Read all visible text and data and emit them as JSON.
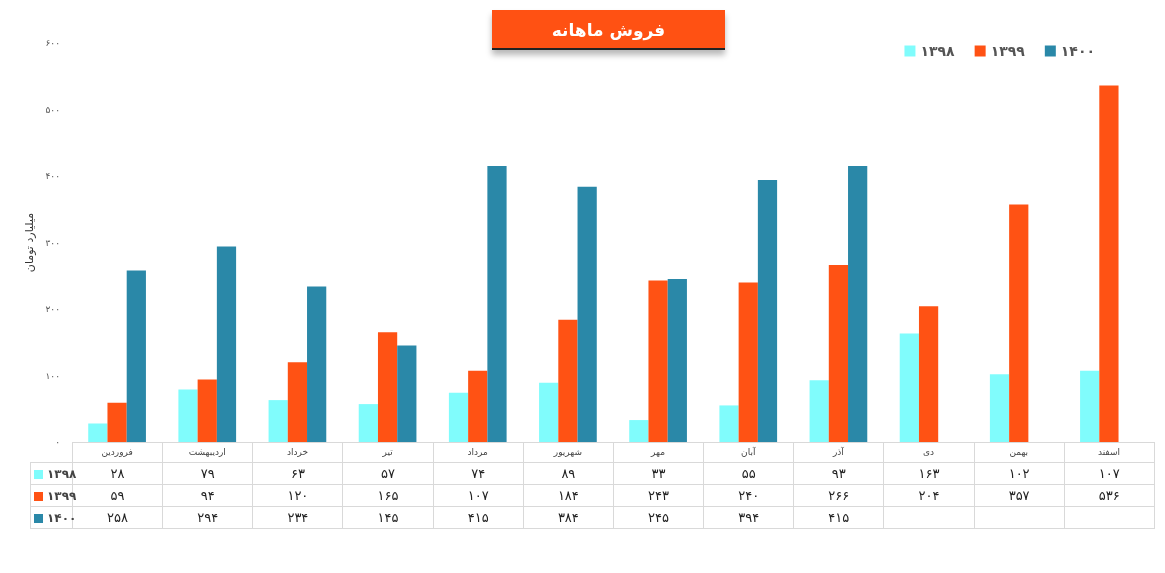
{
  "chart_data": {
    "type": "bar",
    "title": "فروش ماهانه",
    "ylabel": "میلیارد تومان",
    "categories": [
      "فروردین",
      "اردیبهشت",
      "خرداد",
      "تیر",
      "مرداد",
      "شهریور",
      "مهر",
      "آبان",
      "آذر",
      "دی",
      "بهمن",
      "اسفند"
    ],
    "series": [
      {
        "name": "۱۳۹۸",
        "color": "#80fcfc",
        "values": [
          28,
          79,
          63,
          57,
          74,
          89,
          33,
          55,
          93,
          163,
          102,
          107
        ],
        "value_labels": [
          "۲۸",
          "۷۹",
          "۶۳",
          "۵۷",
          "۷۴",
          "۸۹",
          "۳۳",
          "۵۵",
          "۹۳",
          "۱۶۳",
          "۱۰۲",
          "۱۰۷"
        ]
      },
      {
        "name": "۱۳۹۹",
        "color": "#ff5214",
        "values": [
          59,
          94,
          120,
          165,
          107,
          184,
          243,
          240,
          266,
          204,
          357,
          536
        ],
        "value_labels": [
          "۵۹",
          "۹۴",
          "۱۲۰",
          "۱۶۵",
          "۱۰۷",
          "۱۸۴",
          "۲۴۳",
          "۲۴۰",
          "۲۶۶",
          "۲۰۴",
          "۳۵۷",
          "۵۳۶"
        ]
      },
      {
        "name": "۱۴۰۰",
        "color": "#2a88a8",
        "values": [
          258,
          294,
          234,
          145,
          415,
          384,
          245,
          394,
          415,
          null,
          null,
          null
        ],
        "value_labels": [
          "۲۵۸",
          "۲۹۴",
          "۲۳۴",
          "۱۴۵",
          "۴۱۵",
          "۳۸۴",
          "۲۴۵",
          "۳۹۴",
          "۴۱۵",
          null,
          null,
          null
        ]
      }
    ],
    "ylim": [
      0,
      600
    ],
    "yticks": [
      {
        "value": 0,
        "label": "۰"
      },
      {
        "value": 100,
        "label": "۱۰۰"
      },
      {
        "value": 200,
        "label": "۲۰۰"
      },
      {
        "value": 300,
        "label": "۳۰۰"
      },
      {
        "value": 400,
        "label": "۴۰۰"
      },
      {
        "value": 500,
        "label": "۵۰۰"
      },
      {
        "value": 600,
        "label": "۶۰۰"
      }
    ],
    "legend": "top right"
  }
}
